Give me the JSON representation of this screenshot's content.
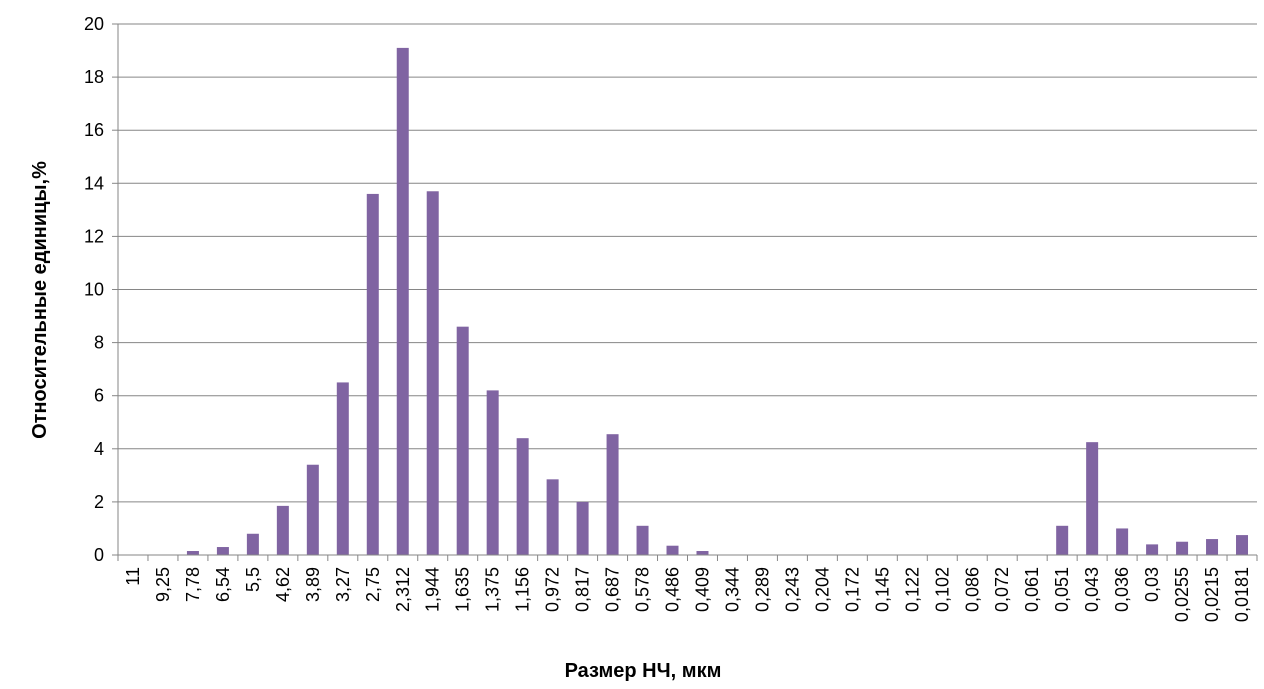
{
  "chart_data": {
    "type": "bar",
    "title": "",
    "xlabel": "Размер НЧ, мкм",
    "ylabel": "Относительные единицы,%",
    "ylim": [
      0,
      20
    ],
    "y_ticks": [
      0,
      2,
      4,
      6,
      8,
      10,
      12,
      14,
      16,
      18,
      20
    ],
    "grid": true,
    "legend": "none",
    "bar_color": "#8064A2",
    "categories": [
      "11",
      "9,25",
      "7,78",
      "6,54",
      "5,5",
      "4,62",
      "3,89",
      "3,27",
      "2,75",
      "2,312",
      "1,944",
      "1,635",
      "1,375",
      "1,156",
      "0,972",
      "0,817",
      "0,687",
      "0,578",
      "0,486",
      "0,409",
      "0,344",
      "0,289",
      "0,243",
      "0,204",
      "0,172",
      "0,145",
      "0,122",
      "0,102",
      "0,086",
      "0,072",
      "0,061",
      "0,051",
      "0,043",
      "0,036",
      "0,03",
      "0,0255",
      "0,0215",
      "0,0181"
    ],
    "values": [
      0,
      0,
      0.15,
      0.3,
      0.8,
      1.85,
      3.4,
      6.5,
      13.6,
      19.1,
      13.7,
      8.6,
      6.2,
      4.4,
      2.85,
      2.0,
      4.55,
      1.1,
      0.35,
      0.15,
      0,
      0,
      0,
      0,
      0,
      0,
      0,
      0,
      0,
      0,
      0,
      1.1,
      4.25,
      1.0,
      0.4,
      0.5,
      0.6,
      0.75
    ]
  }
}
